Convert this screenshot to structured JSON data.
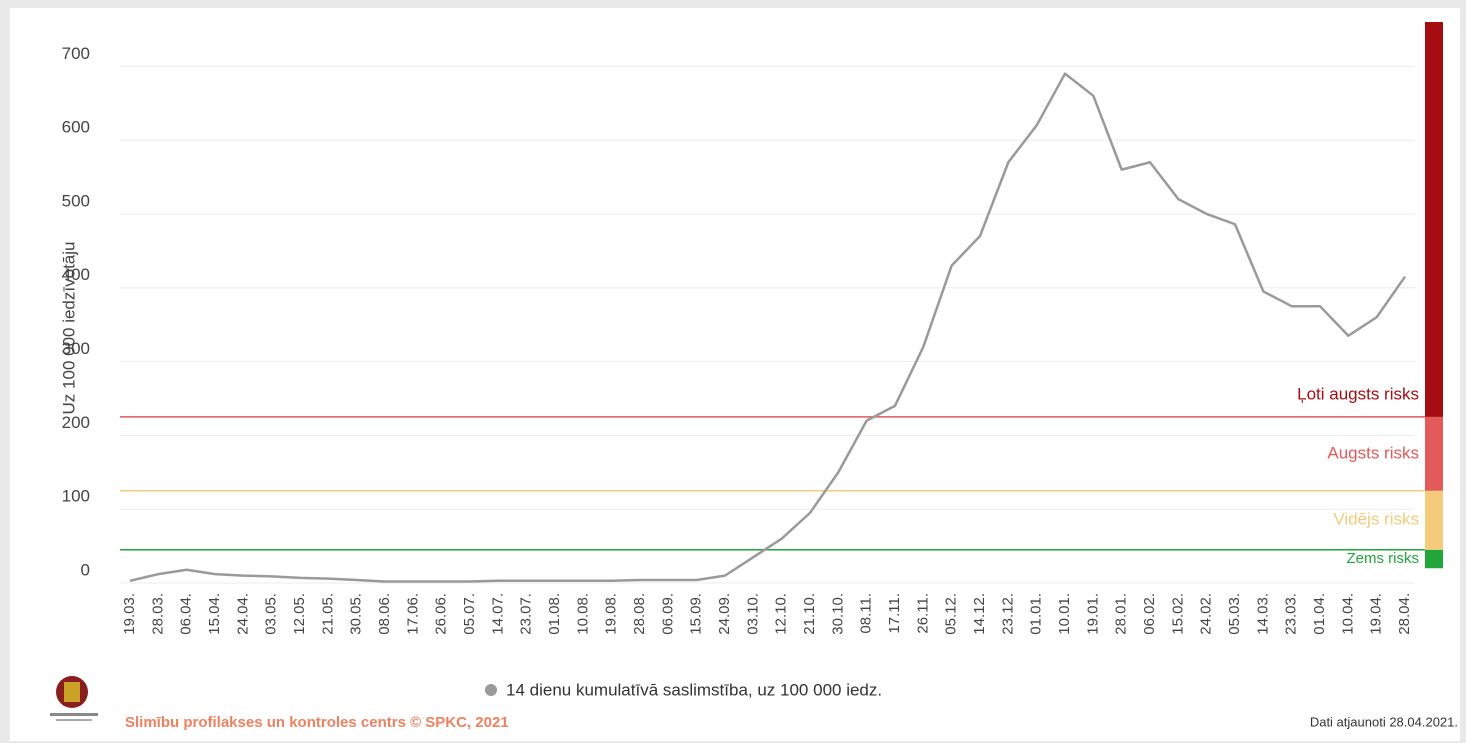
{
  "chart_data": {
    "type": "line",
    "y_label": "Uz 100 000 iedzīvotāju",
    "categories": [
      "19.03.",
      "28.03.",
      "06.04.",
      "15.04.",
      "24.04.",
      "03.05.",
      "12.05.",
      "21.05.",
      "30.05.",
      "08.06.",
      "17.06.",
      "26.06.",
      "05.07.",
      "14.07.",
      "23.07.",
      "01.08.",
      "10.08.",
      "19.08.",
      "28.08.",
      "06.09.",
      "15.09.",
      "24.09.",
      "03.10.",
      "12.10.",
      "21.10.",
      "30.10.",
      "08.11.",
      "17.11.",
      "26.11.",
      "05.12.",
      "14.12.",
      "23.12.",
      "01.01.",
      "10.01.",
      "19.01.",
      "28.01.",
      "06.02.",
      "15.02.",
      "24.02.",
      "05.03.",
      "14.03.",
      "23.03.",
      "01.04.",
      "10.04.",
      "19.04.",
      "28.04."
    ],
    "series": [
      {
        "name": "14 dienu kumulatīvā saslimstība, uz 100 000 iedz.",
        "color": "#9a9a9a",
        "values": [
          3,
          12,
          18,
          12,
          10,
          9,
          7,
          6,
          4,
          2,
          2,
          2,
          2,
          3,
          3,
          3,
          3,
          3,
          4,
          4,
          4,
          10,
          35,
          60,
          95,
          150,
          220,
          240,
          320,
          430,
          470,
          570,
          620,
          690,
          660,
          560,
          570,
          520,
          500,
          486,
          395,
          375,
          375,
          335,
          360,
          415
        ]
      }
    ],
    "ylim": [
      0,
      760
    ],
    "yticks": [
      0,
      100,
      200,
      300,
      400,
      500,
      600,
      700
    ],
    "grid": true,
    "risk_levels": [
      {
        "label": "Zems risks",
        "color": "#22a63a",
        "from": 20,
        "to": 45
      },
      {
        "label": "Vidējs risks",
        "color": "#f3cb7a",
        "from": 45,
        "to": 125
      },
      {
        "label": "Augsts risks",
        "color": "#e25a5a",
        "from": 125,
        "to": 225
      },
      {
        "label": "Ļoti augsts risks",
        "color": "#a50d12",
        "from": 225,
        "to": 760
      }
    ],
    "source": "Slimību profilakses un kontroles centrs © SPKC, 2021",
    "updated": "Dati atjaunoti 28.04.2021."
  }
}
